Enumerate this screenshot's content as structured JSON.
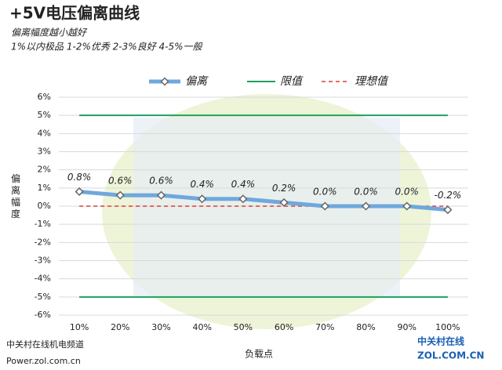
{
  "chart_data": {
    "type": "line",
    "title": "+5V电压偏离曲线",
    "subtitle": [
      "偏离幅度越小越好",
      "1%以内极品 1-2%优秀  2-3%良好 4-5%一般"
    ],
    "x_label": "负载点",
    "y_label": "偏离幅度",
    "categories": [
      "10%",
      "20%",
      "30%",
      "40%",
      "50%",
      "60%",
      "70%",
      "80%",
      "90%",
      "100%"
    ],
    "series": [
      {
        "name": "偏离",
        "color": "#6fa8dc",
        "values": [
          0.8,
          0.6,
          0.6,
          0.4,
          0.4,
          0.2,
          0.0,
          0.0,
          0.0,
          -0.2
        ],
        "value_labels": [
          "0.8%",
          "0.6%",
          "0.6%",
          "0.4%",
          "0.4%",
          "0.2%",
          "0.0%",
          "0.0%",
          "0.0%",
          "-0.2%"
        ]
      },
      {
        "name": "限值",
        "color": "#1aa260",
        "values": [
          5,
          5,
          5,
          5,
          5,
          5,
          5,
          5,
          5,
          5
        ],
        "lower_values": [
          -5,
          -5,
          -5,
          -5,
          -5,
          -5,
          -5,
          -5,
          -5,
          -5
        ]
      },
      {
        "name": "理想值",
        "color": "#e03c31",
        "dashed": true,
        "values": [
          0,
          0,
          0,
          0,
          0,
          0,
          0,
          0,
          0,
          0
        ]
      }
    ],
    "ylim": [
      -6,
      6
    ],
    "yticks": [
      {
        "value": -6,
        "label": "-6%"
      },
      {
        "value": -5,
        "label": "-5%"
      },
      {
        "value": -4,
        "label": "-4%"
      },
      {
        "value": -3,
        "label": "-3%"
      },
      {
        "value": -2,
        "label": "-2%"
      },
      {
        "value": -1,
        "label": "-1%"
      },
      {
        "value": 0,
        "label": "0%"
      },
      {
        "value": 1,
        "label": "1%"
      },
      {
        "value": 2,
        "label": "2%"
      },
      {
        "value": 3,
        "label": "3%"
      },
      {
        "value": 4,
        "label": "4%"
      },
      {
        "value": 5,
        "label": "5%"
      },
      {
        "value": 6,
        "label": "6%"
      }
    ],
    "grid": true,
    "legend": "top",
    "watermark": [
      "中关村在线机电频道",
      "Power.zol.com.cn"
    ],
    "logo": [
      "中关村在线",
      "ZOL.COM.CN"
    ]
  }
}
